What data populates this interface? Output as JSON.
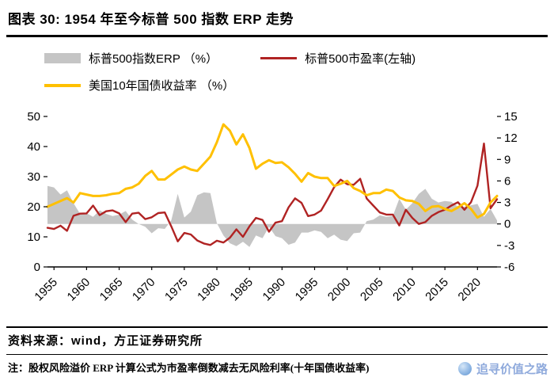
{
  "header": {
    "title": "图表 30: 1954 年至今标普 500 指数 ERP 走势"
  },
  "legend": [
    {
      "label": "标普500指数ERP （%）",
      "color": "#c5c5c5",
      "type": "area"
    },
    {
      "label": "标普500市盈率(左轴)",
      "color": "#b02323",
      "type": "line"
    },
    {
      "label": "美国10年国债收益率 （%）",
      "color": "#ffc000",
      "type": "line"
    }
  ],
  "footer": {
    "source": "资料来源：wind，方正证券研究所",
    "note": "注：股权风险溢价 ERP 计算公式为市盈率倒数减去无风险利率(十年国债收益率)"
  },
  "watermark": {
    "text": "追寻价值之路"
  },
  "chart_data": {
    "type": "line",
    "title": "1954 年至今标普 500 指数 ERP 走势",
    "x": [
      1954,
      1955,
      1956,
      1957,
      1958,
      1959,
      1960,
      1961,
      1962,
      1963,
      1964,
      1965,
      1966,
      1967,
      1968,
      1969,
      1970,
      1971,
      1972,
      1973,
      1974,
      1975,
      1976,
      1977,
      1978,
      1979,
      1980,
      1981,
      1982,
      1983,
      1984,
      1985,
      1986,
      1987,
      1988,
      1989,
      1990,
      1991,
      1992,
      1993,
      1994,
      1995,
      1996,
      1997,
      1998,
      1999,
      2000,
      2001,
      2002,
      2003,
      2004,
      2005,
      2006,
      2007,
      2008,
      2009,
      2010,
      2011,
      2012,
      2013,
      2014,
      2015,
      2016,
      2017,
      2018,
      2019,
      2020,
      2021,
      2022,
      2023
    ],
    "x_ticks": [
      1955,
      1960,
      1965,
      1970,
      1975,
      1980,
      1985,
      1990,
      1995,
      2000,
      2005,
      2010,
      2015,
      2020
    ],
    "left_axis": {
      "range": [
        0,
        50
      ],
      "ticks": [
        0,
        10,
        20,
        30,
        40,
        50
      ]
    },
    "right_axis": {
      "range": [
        -6,
        15
      ],
      "ticks": [
        -6,
        -3,
        0,
        3,
        6,
        9,
        12,
        15
      ]
    },
    "grid": false,
    "legend_position": "top-left",
    "series": [
      {
        "name": "标普500指数ERP （%）",
        "type": "area",
        "axis": "right",
        "color": "#c5c5c5",
        "values": [
          5.3,
          5.1,
          4.1,
          4.7,
          2.9,
          1.4,
          1.5,
          1.0,
          1.9,
          1.4,
          1.1,
          1.3,
          1.8,
          0.6,
          0.0,
          -0.4,
          -1.3,
          -0.6,
          -0.7,
          0.5,
          4.2,
          0.9,
          1.7,
          4.0,
          4.4,
          4.3,
          0.1,
          -1.6,
          -2.7,
          -3.1,
          -2.5,
          -3.2,
          -1.6,
          -2.0,
          -0.4,
          -1.7,
          -2.0,
          -2.9,
          -2.6,
          -1.2,
          -1.2,
          -0.9,
          -1.1,
          -2.0,
          -1.5,
          -2.2,
          -2.4,
          -1.3,
          -1.2,
          0.4,
          0.6,
          1.2,
          1.0,
          1.1,
          3.5,
          2.0,
          2.9,
          4.2,
          4.9,
          3.5,
          3.0,
          3.2,
          3.1,
          2.4,
          2.4,
          2.6,
          2.8,
          1.0,
          2.1,
          0.5
        ]
      },
      {
        "name": "标普500市盈率(左轴)",
        "type": "line",
        "axis": "left",
        "color": "#b02323",
        "width": 2.4,
        "values": [
          13.0,
          12.6,
          13.7,
          12.0,
          17.0,
          17.7,
          17.8,
          20.4,
          17.2,
          18.5,
          18.8,
          17.8,
          14.9,
          17.7,
          18.0,
          15.9,
          16.5,
          17.9,
          18.1,
          13.5,
          8.5,
          11.3,
          10.8,
          8.8,
          7.8,
          7.3,
          8.7,
          8.1,
          9.7,
          12.5,
          10.0,
          13.5,
          16.3,
          15.6,
          11.7,
          14.7,
          15.2,
          19.8,
          22.8,
          21.3,
          16.9,
          17.4,
          18.7,
          22.5,
          26.5,
          29.0,
          27.5,
          27.3,
          29.3,
          22.7,
          20.4,
          18.1,
          17.4,
          17.4,
          13.8,
          19.0,
          16.3,
          14.3,
          14.9,
          17.0,
          18.2,
          19.0,
          20.4,
          21.5,
          19.0,
          21.5,
          27.0,
          41.0,
          19.5,
          22.5
        ]
      },
      {
        "name": "美国10年国债收益率 （%）",
        "type": "line",
        "axis": "right",
        "color": "#ffc000",
        "width": 3,
        "values": [
          2.4,
          2.8,
          3.2,
          3.6,
          3.0,
          4.3,
          4.1,
          3.9,
          3.9,
          4.0,
          4.2,
          4.3,
          4.9,
          5.1,
          5.6,
          6.7,
          7.4,
          6.2,
          6.2,
          6.9,
          7.6,
          8.0,
          7.6,
          7.4,
          8.4,
          9.4,
          11.4,
          13.9,
          13.0,
          11.1,
          12.5,
          10.6,
          7.7,
          8.4,
          8.9,
          8.5,
          8.6,
          7.9,
          7.0,
          5.9,
          7.1,
          6.6,
          6.4,
          6.4,
          5.3,
          5.6,
          6.0,
          5.0,
          4.6,
          4.0,
          4.3,
          4.3,
          4.8,
          4.6,
          3.7,
          3.3,
          3.2,
          2.8,
          1.8,
          2.4,
          2.5,
          2.1,
          1.8,
          2.3,
          2.9,
          2.1,
          0.9,
          1.4,
          3.0,
          3.9
        ]
      }
    ]
  }
}
